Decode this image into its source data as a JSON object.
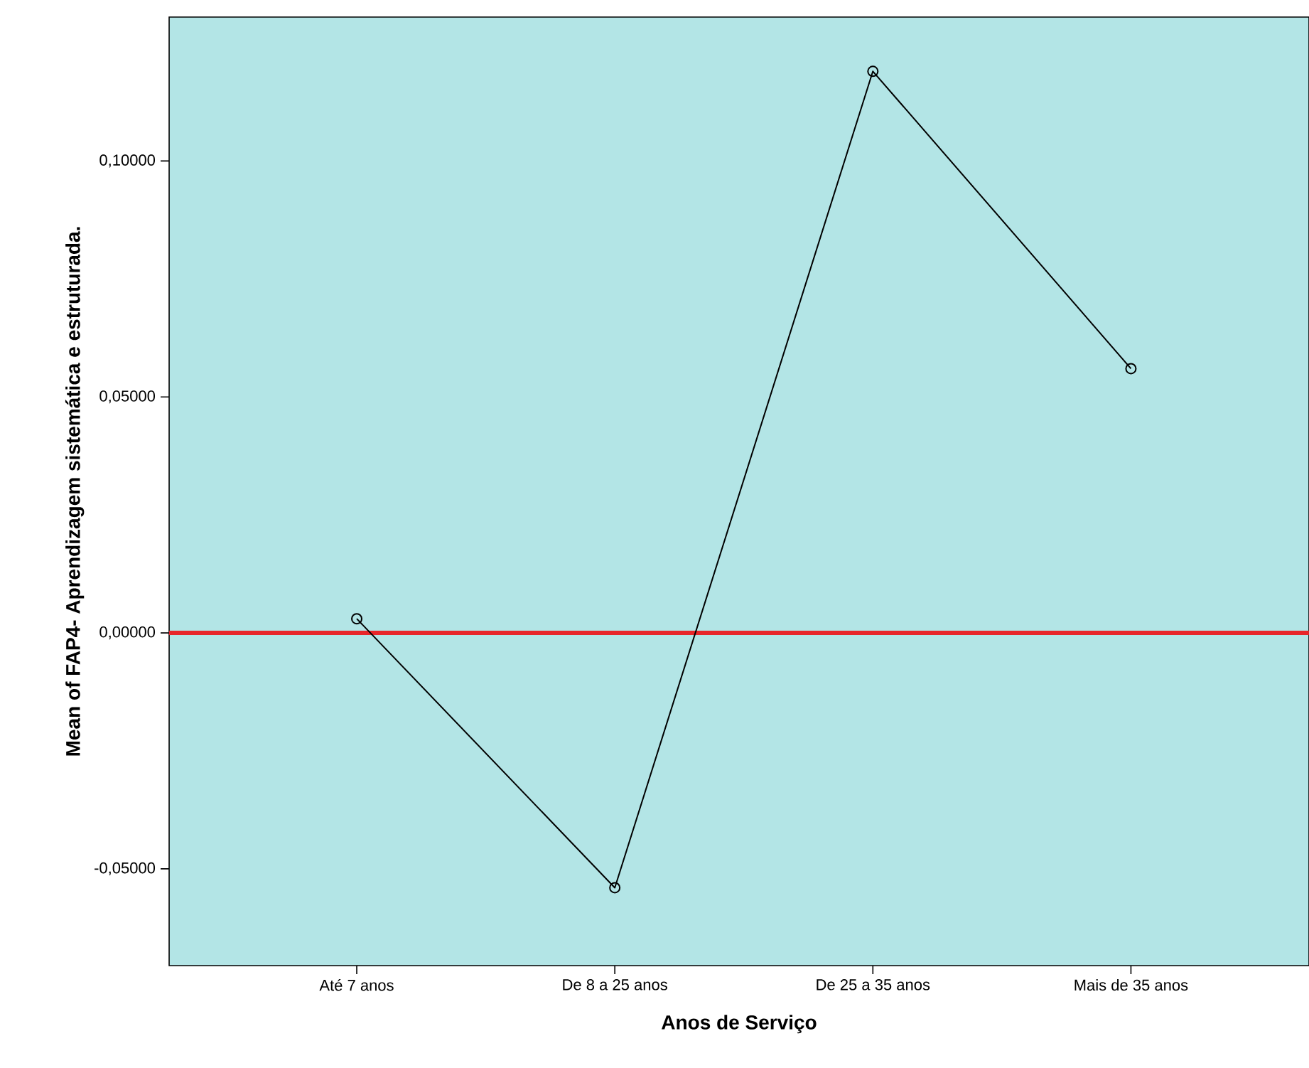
{
  "chart_data": {
    "type": "line",
    "xlabel": "Anos de Serviço",
    "ylabel": "Mean of FAP4- Aprendizagem sistemática e estruturada.",
    "categories": [
      "Até 7 anos",
      "De 8 a 25 anos",
      "De 25 a 35 anos",
      "Mais de 35 anos"
    ],
    "series": [
      {
        "color": "#000000",
        "values": [
          0.003,
          -0.054,
          0.119,
          0.056
        ]
      }
    ],
    "ylim": [
      -0.0705,
      0.1305
    ],
    "yticks": [
      {
        "value": -0.05,
        "label": "-0,05000"
      },
      {
        "value": 0,
        "label": "0,00000"
      },
      {
        "value": 0.05,
        "label": "0,05000"
      },
      {
        "value": 0.1,
        "label": "0,10000"
      }
    ],
    "ref_lines": [
      {
        "axis": "y",
        "value": 0,
        "color": "#e8262a"
      }
    ],
    "marker": "circle",
    "line_style": "solid"
  }
}
